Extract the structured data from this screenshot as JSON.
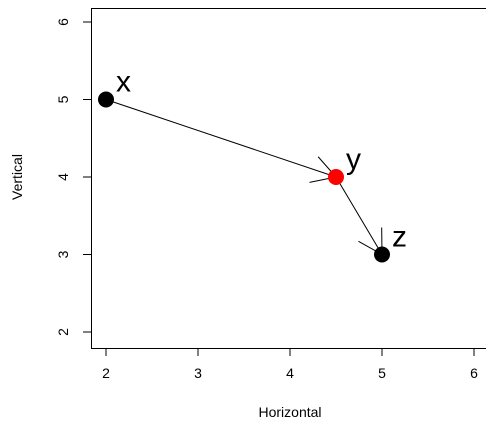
{
  "chart_data": {
    "type": "scatter",
    "title": "",
    "xlabel": "Horizontal",
    "ylabel": "Vertical",
    "xlim": [
      2,
      6
    ],
    "ylim": [
      2,
      6
    ],
    "x_ticks": [
      "2",
      "3",
      "4",
      "5",
      "6"
    ],
    "y_ticks": [
      "2",
      "3",
      "4",
      "5",
      "6"
    ],
    "grid": false,
    "points": [
      {
        "label": "x",
        "x": 2.0,
        "y": 5.0,
        "color": "#000000"
      },
      {
        "label": "y",
        "x": 4.5,
        "y": 4.0,
        "color": "#ff0000"
      },
      {
        "label": "z",
        "x": 5.0,
        "y": 3.0,
        "color": "#000000"
      }
    ],
    "arrows": [
      {
        "from": "x",
        "to": "y",
        "color": "#000000"
      },
      {
        "from": "y",
        "to": "z",
        "color": "#000000"
      }
    ]
  }
}
